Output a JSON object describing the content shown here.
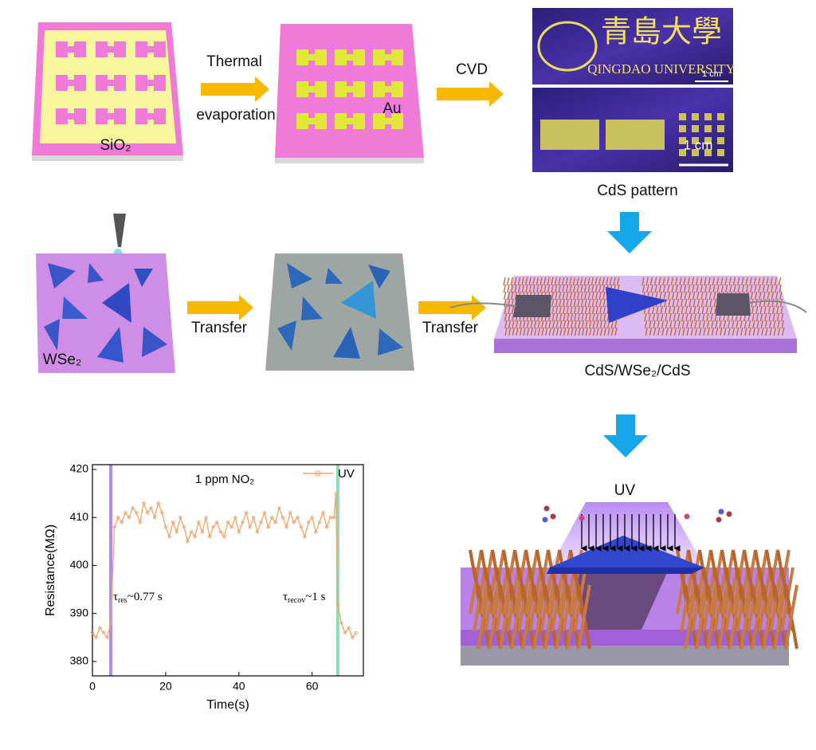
{
  "diagram": {
    "step1": {
      "substrate_label": "SiO₂"
    },
    "arrow1": {
      "label_top": "Thermal",
      "label_bottom": "evaporation"
    },
    "step2": {
      "electrode_label": "Au"
    },
    "arrow2": {
      "label": "CVD"
    },
    "photo_top": {
      "logo_text": "青島大學",
      "university": "QINGDAO UNIVERSITY",
      "scale_bar": "1 cm"
    },
    "photo_bottom": {
      "scale_bar": "1 cm"
    },
    "photo_caption": "CdS pattern",
    "step3": {
      "label": "WSe₂"
    },
    "arrow3": {
      "label": "Transfer"
    },
    "arrow4": {
      "label": "Transfer"
    },
    "device_caption": "CdS/WSe₂/CdS",
    "uv_device": {
      "label": "UV"
    }
  },
  "chart_data": {
    "type": "line",
    "annotation": "1 ppm NO₂",
    "x_label": "Time(s)",
    "y_label": "Resistance(MΩ)",
    "xlim": [
      0,
      74
    ],
    "ylim": [
      377,
      421
    ],
    "xticks": [
      0,
      20,
      40,
      60
    ],
    "yticks": [
      380,
      390,
      400,
      410,
      420
    ],
    "legend": "upper right",
    "markers": [
      {
        "x": 5,
        "color": "#b48be6"
      },
      {
        "x": 67,
        "color": "#8fd9b4"
      }
    ],
    "tau_labels": [
      {
        "symbol": "τ",
        "sub": "res",
        "text": "~0.77 s"
      },
      {
        "symbol": "τ",
        "sub": "recov",
        "text": "~1 s"
      }
    ],
    "x": [
      0,
      1,
      2,
      3,
      4,
      5,
      6,
      7,
      8,
      9,
      10,
      11,
      12,
      13,
      14,
      15,
      16,
      17,
      18,
      19,
      20,
      21,
      22,
      23,
      24,
      25,
      26,
      27,
      28,
      29,
      30,
      31,
      32,
      33,
      34,
      35,
      36,
      37,
      38,
      39,
      40,
      41,
      42,
      43,
      44,
      45,
      46,
      47,
      48,
      49,
      50,
      51,
      52,
      53,
      54,
      55,
      56,
      57,
      58,
      59,
      60,
      61,
      62,
      63,
      64,
      65,
      66,
      66.5,
      67,
      68,
      69,
      70,
      71,
      72
    ],
    "series": [
      {
        "name": "UV",
        "color": "#f4a266",
        "values": [
          386,
          385,
          387,
          386,
          385,
          388,
          408,
          410,
          409,
          411,
          410,
          412,
          411,
          409,
          413,
          411,
          412,
          410,
          413,
          411,
          408,
          406,
          409,
          407,
          410,
          408,
          405,
          407,
          406,
          409,
          407,
          410,
          406,
          408,
          409,
          407,
          406,
          409,
          408,
          410,
          407,
          409,
          411,
          408,
          410,
          407,
          409,
          411,
          408,
          410,
          409,
          412,
          410,
          408,
          411,
          409,
          410,
          408,
          406,
          409,
          410,
          407,
          409,
          411,
          408,
          410,
          410,
          415,
          392,
          388,
          386,
          387,
          385,
          386
        ]
      }
    ]
  }
}
